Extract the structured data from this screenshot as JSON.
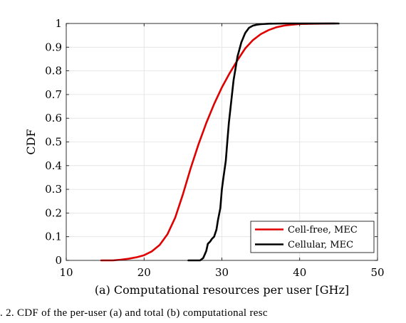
{
  "chart_data": {
    "type": "line",
    "title": "",
    "xlabel": "(a) Computational resources per user [GHz]",
    "ylabel": "CDF",
    "xlim": [
      10,
      50
    ],
    "ylim": [
      0,
      1
    ],
    "grid": true,
    "legend_position": "bottom-right",
    "x_ticks": [
      "10",
      "20",
      "30",
      "40",
      "50"
    ],
    "y_ticks": [
      "0",
      "0.1",
      "0.2",
      "0.3",
      "0.4",
      "0.5",
      "0.6",
      "0.7",
      "0.8",
      "0.9",
      "1"
    ],
    "series": [
      {
        "name": "Cell-free, MEC",
        "color": "#e00000",
        "x": [
          14.5,
          16,
          17,
          18,
          19,
          20,
          21,
          22,
          23,
          24,
          25,
          26,
          27,
          28,
          29,
          30,
          31,
          32,
          33,
          34,
          35,
          36,
          37,
          38,
          39,
          40,
          42,
          44.5
        ],
        "y": [
          0,
          0,
          0.003,
          0.007,
          0.013,
          0.022,
          0.038,
          0.065,
          0.11,
          0.18,
          0.28,
          0.39,
          0.49,
          0.58,
          0.66,
          0.73,
          0.79,
          0.845,
          0.895,
          0.93,
          0.955,
          0.972,
          0.984,
          0.991,
          0.995,
          0.998,
          0.999,
          1
        ]
      },
      {
        "name": "Cellular, MEC",
        "color": "#000000",
        "x": [
          25.7,
          27.2,
          27.6,
          28.0,
          28.2,
          28.5,
          28.7,
          29.0,
          29.3,
          29.5,
          29.8,
          30.0,
          30.2,
          30.5,
          30.7,
          30.9,
          31.2,
          31.5,
          32.0,
          32.5,
          33.0,
          33.5,
          34.0,
          34.5,
          35.0,
          36.0,
          38.0,
          40.0,
          42.0,
          45.0
        ],
        "y": [
          0,
          0,
          0.01,
          0.04,
          0.07,
          0.08,
          0.09,
          0.1,
          0.13,
          0.17,
          0.22,
          0.3,
          0.35,
          0.42,
          0.5,
          0.58,
          0.67,
          0.76,
          0.86,
          0.92,
          0.96,
          0.982,
          0.991,
          0.995,
          0.997,
          0.999,
          1,
          1,
          1,
          1
        ]
      }
    ]
  },
  "caption": ". 2.   CDF of the per-user (a) and total (b) computational resc"
}
